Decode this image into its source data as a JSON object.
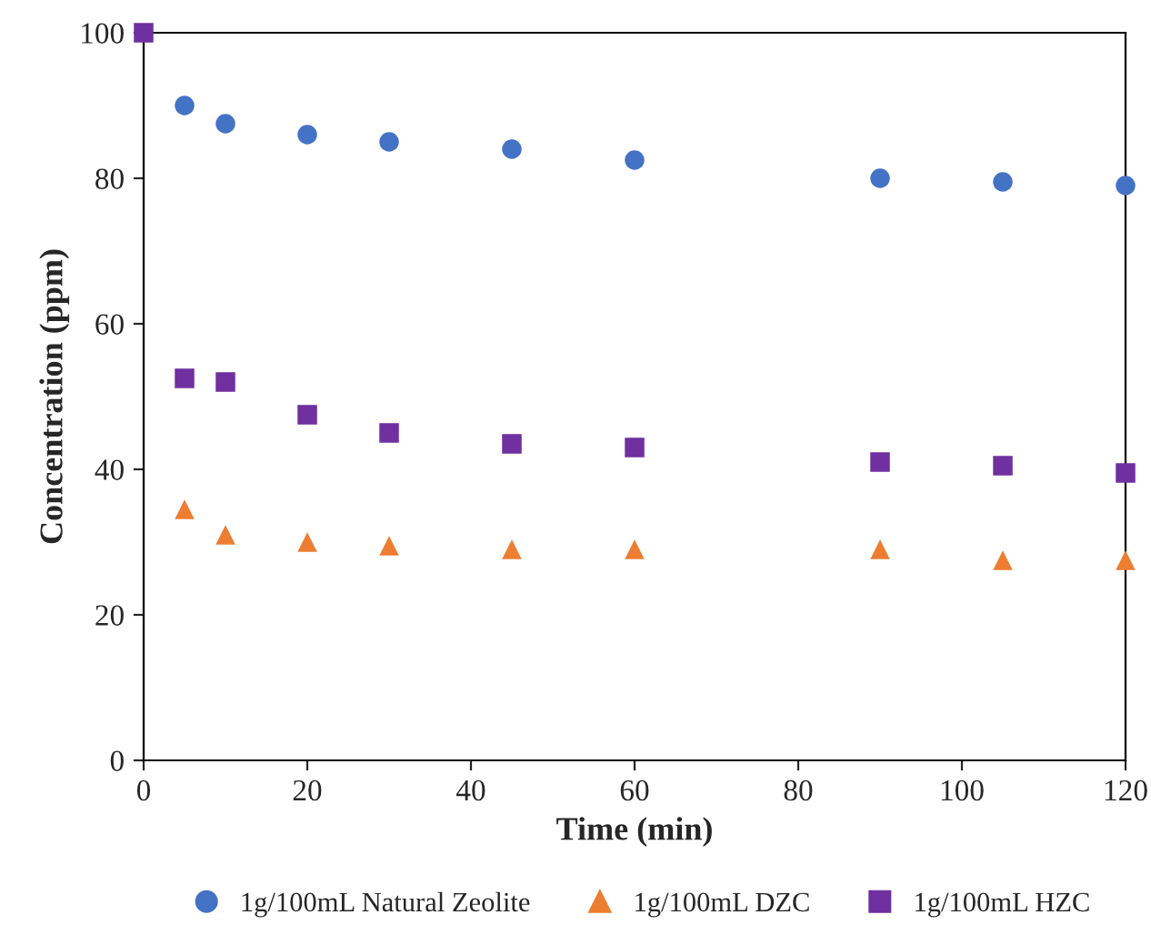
{
  "chart_data": {
    "type": "scatter",
    "xlabel": "Time (min)",
    "ylabel": "Concentration (ppm)",
    "x": [
      0,
      5,
      10,
      20,
      30,
      45,
      60,
      90,
      105,
      120
    ],
    "series": [
      {
        "name": "1g/100mL Natural Zeolite",
        "color": "#4472c4",
        "marker": "circle",
        "values": [
          null,
          90,
          87.5,
          86,
          85,
          84,
          82.5,
          80,
          79.5,
          79
        ]
      },
      {
        "name": "1g/100mL DZC",
        "color": "#ed7d31",
        "marker": "triangle",
        "values": [
          null,
          34.5,
          31,
          30,
          29.5,
          29,
          29,
          29,
          27.5,
          27.5
        ]
      },
      {
        "name": "1g/100mL HZC",
        "color": "#7030a0",
        "marker": "square",
        "values": [
          100,
          52.5,
          52,
          47.5,
          45,
          43.5,
          43,
          41,
          40.5,
          39.5
        ]
      }
    ],
    "xlim": [
      0,
      120
    ],
    "xticks": [
      0,
      20,
      40,
      60,
      80,
      100,
      120
    ],
    "ylim": [
      0,
      100
    ],
    "yticks": [
      0,
      20,
      40,
      60,
      80,
      100
    ],
    "grid": false,
    "legend": "bottom"
  }
}
